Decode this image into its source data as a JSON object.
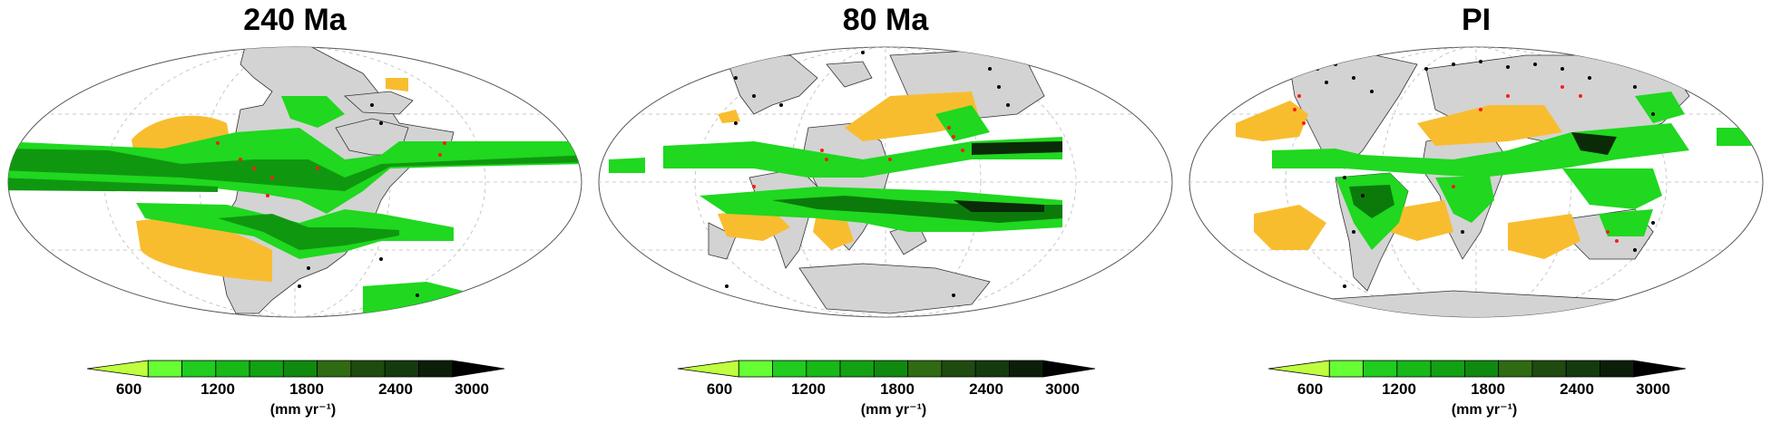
{
  "panels": [
    {
      "title": "240 Ma"
    },
    {
      "title": "80 Ma"
    },
    {
      "title": "PI"
    }
  ],
  "legend": {
    "ticks": [
      "600",
      "1200",
      "1800",
      "2400",
      "3000"
    ],
    "units": "(mm yr⁻¹)",
    "colors": [
      "#bfff3f",
      "#66ff33",
      "#1fcc1f",
      "#17b817",
      "#12a112",
      "#0f8a0f",
      "#2f6b12",
      "#1f4a10",
      "#153a10",
      "#0b1f08",
      "#000000"
    ]
  },
  "map_colors": {
    "land": "#d3d3d3",
    "desert": "#f8bd2f",
    "wet": [
      "#1fd81f",
      "#16b816",
      "#0f980f",
      "#0b7a0b",
      "#1e5a16",
      "#0b2a08"
    ],
    "fossil_dot": "#ff1a1a",
    "record_dot": "#000000"
  }
}
